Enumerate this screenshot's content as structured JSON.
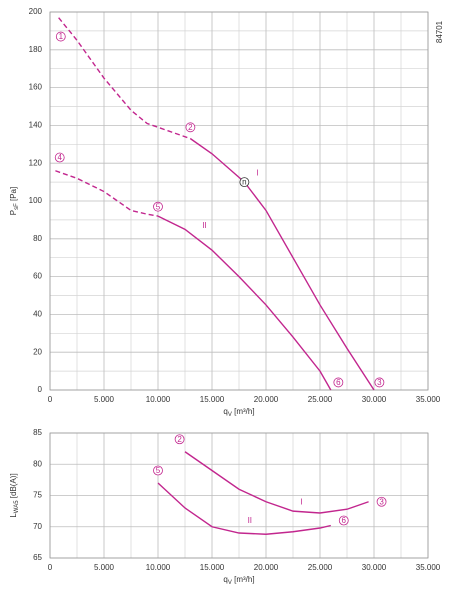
{
  "chart_data": [
    {
      "type": "line",
      "xlabel": {
        "main": "q",
        "sub": "V",
        "unit": " [m³/h]"
      },
      "ylabel": {
        "main": "P",
        "sub": "sF",
        "unit": " [Pa]"
      },
      "id_label": "84701",
      "xlim": [
        0,
        35000
      ],
      "ylim": [
        0,
        200
      ],
      "xticks": [
        0,
        {
          "value": 5000,
          "label": "5.000"
        },
        {
          "value": 10000,
          "label": "10.000"
        },
        {
          "value": 15000,
          "label": "15.000"
        },
        {
          "value": 20000,
          "label": "20.000"
        },
        {
          "value": 25000,
          "label": "25.000"
        },
        {
          "value": 30000,
          "label": "30.000"
        },
        {
          "value": 35000,
          "label": "35.000"
        }
      ],
      "yticks": [
        0,
        20,
        40,
        60,
        80,
        100,
        120,
        140,
        160,
        180,
        200
      ],
      "minor_xticks": [
        2500,
        7500,
        12500,
        17500,
        22500,
        27500,
        32500
      ],
      "minor_yticks": [
        10,
        30,
        50,
        70,
        90,
        110,
        130,
        150,
        170,
        190
      ],
      "grid": true,
      "color": "#c2268e",
      "series": [
        {
          "dashed": true,
          "x": [
            800,
            2500,
            5000,
            7500,
            9000,
            10000,
            11000,
            13000
          ],
          "values": [
            197,
            185,
            165,
            148,
            141,
            139,
            137,
            133
          ]
        },
        {
          "dashed": false,
          "x": [
            13000,
            15000,
            17000,
            18000,
            20000,
            22500,
            25000,
            27500,
            30000
          ],
          "values": [
            133,
            125,
            115,
            110,
            95,
            70,
            45,
            22,
            0
          ]
        },
        {
          "dashed": true,
          "x": [
            500,
            2500,
            5000,
            7500,
            9000,
            10000
          ],
          "values": [
            116,
            112,
            105,
            95,
            93,
            92
          ]
        },
        {
          "dashed": false,
          "x": [
            10000,
            12500,
            15000,
            17500,
            20000,
            22500,
            25000,
            26000
          ],
          "values": [
            92,
            85,
            74,
            60,
            45,
            28,
            10,
            0
          ]
        }
      ],
      "annotations": [
        {
          "text": "1",
          "x": 1000,
          "y": 187,
          "circle": true
        },
        {
          "text": "2",
          "x": 13000,
          "y": 139,
          "circle": true
        },
        {
          "text": "3",
          "x": 30500,
          "y": 4,
          "circle": true
        },
        {
          "text": "4",
          "x": 900,
          "y": 123,
          "circle": true
        },
        {
          "text": "5",
          "x": 10000,
          "y": 97,
          "circle": true
        },
        {
          "text": "6",
          "x": 26700,
          "y": 4,
          "circle": true
        },
        {
          "text": "n",
          "x": 18000,
          "y": 110,
          "circle": true
        },
        {
          "text": "I",
          "x": 19200,
          "y": 115,
          "circle": false
        },
        {
          "text": "II",
          "x": 14300,
          "y": 87,
          "circle": false
        }
      ]
    },
    {
      "type": "line",
      "xlabel": {
        "main": "q",
        "sub": "V",
        "unit": " [m³/h]"
      },
      "ylabel": {
        "main": "L",
        "sub": "WA5",
        "unit": " [dB(A)]"
      },
      "xlim": [
        0,
        35000
      ],
      "ylim": [
        65,
        85
      ],
      "xticks": [
        0,
        {
          "value": 5000,
          "label": "5.000"
        },
        {
          "value": 10000,
          "label": "10.000"
        },
        {
          "value": 15000,
          "label": "15.000"
        },
        {
          "value": 20000,
          "label": "20.000"
        },
        {
          "value": 25000,
          "label": "25.000"
        },
        {
          "value": 30000,
          "label": "30.000"
        },
        {
          "value": 35000,
          "label": "35.000"
        }
      ],
      "yticks": [
        65,
        70,
        75,
        80,
        85
      ],
      "minor_xticks": [
        2500,
        7500,
        12500,
        17500,
        22500,
        27500,
        32500
      ],
      "minor_yticks": [],
      "grid": true,
      "color": "#c2268e",
      "series": [
        {
          "dashed": false,
          "x": [
            12500,
            15000,
            17500,
            20000,
            22500,
            25000,
            27500,
            29500
          ],
          "values": [
            82,
            79,
            76,
            74,
            72.5,
            72.2,
            72.8,
            74
          ]
        },
        {
          "dashed": false,
          "x": [
            10000,
            12500,
            15000,
            17500,
            20000,
            22500,
            25000,
            26000
          ],
          "values": [
            77,
            73,
            70,
            69,
            68.8,
            69.2,
            69.8,
            70.2
          ]
        }
      ],
      "annotations": [
        {
          "text": "2",
          "x": 12000,
          "y": 84,
          "circle": true
        },
        {
          "text": "3",
          "x": 30700,
          "y": 74,
          "circle": true
        },
        {
          "text": "5",
          "x": 10000,
          "y": 79,
          "circle": true
        },
        {
          "text": "6",
          "x": 27200,
          "y": 71,
          "circle": true
        },
        {
          "text": "I",
          "x": 23300,
          "y": 74,
          "circle": false
        },
        {
          "text": "II",
          "x": 18500,
          "y": 71,
          "circle": false
        }
      ]
    }
  ]
}
